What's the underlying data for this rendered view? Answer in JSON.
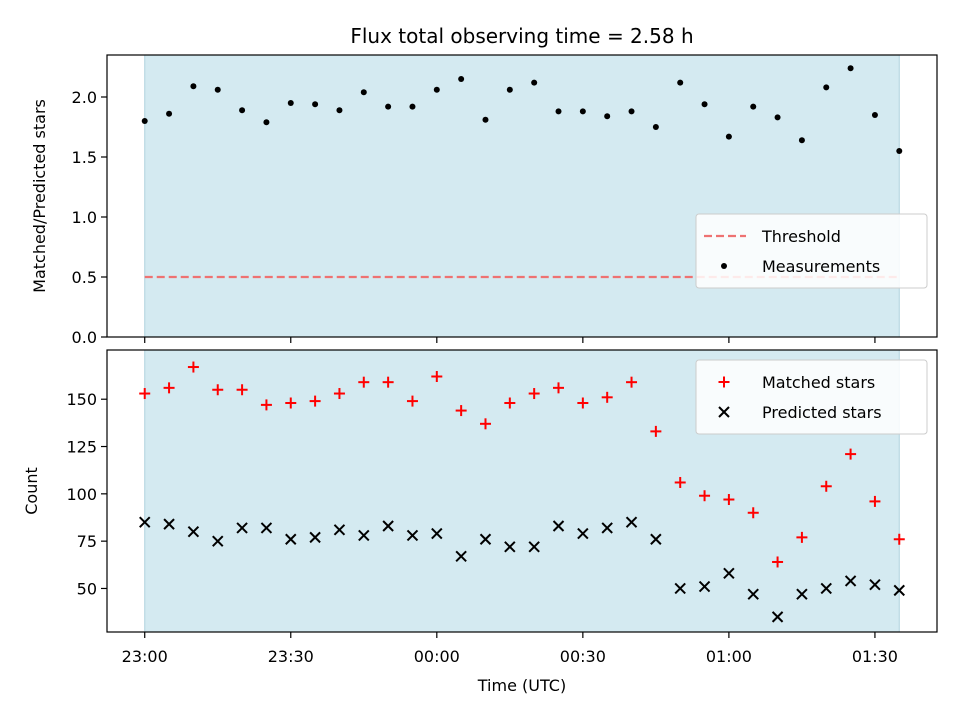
{
  "chart_data": {
    "title": "Flux total observing time = 2.58 h",
    "xlabel": "Time (UTC)",
    "x_tick_labels": [
      "23:00",
      "23:30",
      "00:00",
      "00:30",
      "01:00",
      "01:30"
    ],
    "x_tick_offsets_min": [
      0,
      30,
      60,
      90,
      120,
      150
    ],
    "times": [
      "23:00",
      "23:05",
      "23:10",
      "23:15",
      "23:20",
      "23:25",
      "23:30",
      "23:35",
      "23:40",
      "23:45",
      "23:50",
      "23:55",
      "00:00",
      "00:05",
      "00:10",
      "00:15",
      "00:20",
      "00:25",
      "00:30",
      "00:35",
      "00:40",
      "00:45",
      "00:50",
      "00:55",
      "01:00",
      "01:05",
      "01:10",
      "01:15",
      "01:20",
      "01:25",
      "01:30",
      "01:35"
    ],
    "observing_window": {
      "start": "23:00",
      "end": "01:35",
      "color": "#d4eaf1"
    },
    "panels": [
      {
        "type": "scatter",
        "ylabel": "Matched/Predicted stars",
        "ylim": [
          0,
          2.35
        ],
        "yticks": [
          0.0,
          0.5,
          1.0,
          1.5,
          2.0
        ],
        "y_tick_labels": [
          "0.0",
          "0.5",
          "1.0",
          "1.5",
          "2.0"
        ],
        "legend_position": "center-right",
        "threshold": {
          "name": "Threshold",
          "value": 0.5,
          "color": "#ee7272"
        },
        "series": [
          {
            "name": "Measurements",
            "marker": "dot",
            "color": "#000000",
            "values": [
              1.8,
              1.86,
              2.09,
              2.06,
              1.89,
              1.79,
              1.95,
              1.94,
              1.89,
              2.04,
              1.92,
              1.92,
              2.06,
              2.15,
              1.81,
              2.06,
              2.12,
              1.88,
              1.88,
              1.84,
              1.88,
              1.75,
              2.12,
              1.94,
              1.67,
              1.92,
              1.83,
              1.64,
              2.08,
              2.24,
              1.85,
              1.55
            ]
          }
        ]
      },
      {
        "type": "scatter",
        "ylabel": "Count",
        "ylim": [
          27,
          176
        ],
        "yticks": [
          50,
          75,
          100,
          125,
          150
        ],
        "y_tick_labels": [
          "50",
          "75",
          "100",
          "125",
          "150"
        ],
        "legend_position": "top-right",
        "series": [
          {
            "name": "Matched stars",
            "marker": "plus",
            "color": "#ff0000",
            "values": [
              153,
              156,
              167,
              155,
              155,
              147,
              148,
              149,
              153,
              159,
              159,
              149,
              162,
              144,
              137,
              148,
              153,
              156,
              148,
              151,
              159,
              133,
              106,
              99,
              97,
              90,
              64,
              77,
              104,
              121,
              96,
              76
            ]
          },
          {
            "name": "Predicted stars",
            "marker": "x",
            "color": "#000000",
            "values": [
              85,
              84,
              80,
              75,
              82,
              82,
              76,
              77,
              81,
              78,
              83,
              78,
              79,
              67,
              76,
              72,
              72,
              83,
              79,
              82,
              85,
              76,
              50,
              51,
              58,
              47,
              35,
              47,
              50,
              54,
              52,
              49
            ]
          }
        ]
      }
    ]
  }
}
